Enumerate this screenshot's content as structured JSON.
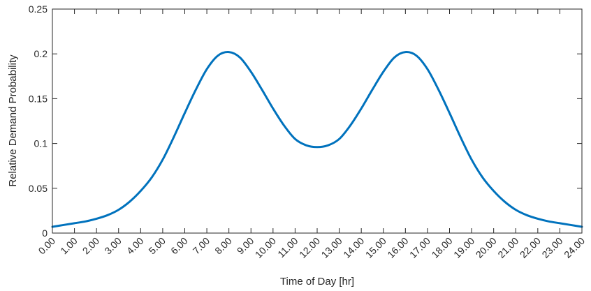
{
  "chart_data": {
    "type": "line",
    "title": "",
    "xlabel": "Time of Day [hr]",
    "ylabel": "Relative Demand Probability",
    "xlim": [
      0,
      24
    ],
    "ylim": [
      0,
      0.25
    ],
    "grid": false,
    "legend": "none",
    "x_tick_labels": [
      "0.00",
      "1.00",
      "2.00",
      "3.00",
      "4.00",
      "5.00",
      "6.00",
      "7.00",
      "8.00",
      "9.00",
      "10.00",
      "11.00",
      "12.00",
      "13.00",
      "14.00",
      "15.00",
      "16.00",
      "17.00",
      "18.00",
      "19.00",
      "20.00",
      "21.00",
      "22.00",
      "23.00",
      "24.00"
    ],
    "y_ticks": [
      0,
      0.05,
      0.1,
      0.15,
      0.2,
      0.25
    ],
    "y_tick_labels": [
      "0",
      "0.05",
      "0.1",
      "0.15",
      "0.2",
      "0.25"
    ],
    "colors": {
      "line": "#0072BD",
      "axis": "#262626"
    },
    "series": [
      {
        "x": [
          0,
          0.5,
          1,
          1.5,
          2,
          2.5,
          3,
          3.5,
          4,
          4.5,
          5,
          5.5,
          6,
          6.5,
          7,
          7.5,
          8,
          8.5,
          9,
          9.5,
          10,
          10.5,
          11,
          11.5,
          12,
          12.5,
          13,
          13.5,
          14,
          14.5,
          15,
          15.5,
          16,
          16.5,
          17,
          17.5,
          18,
          18.5,
          19,
          19.5,
          20,
          20.5,
          21,
          21.5,
          22,
          22.5,
          23,
          23.5,
          24
        ],
        "values": [
          0.007,
          0.009,
          0.011,
          0.013,
          0.016,
          0.02,
          0.026,
          0.035,
          0.047,
          0.062,
          0.082,
          0.107,
          0.134,
          0.16,
          0.183,
          0.198,
          0.202,
          0.196,
          0.18,
          0.16,
          0.139,
          0.12,
          0.105,
          0.098,
          0.096,
          0.098,
          0.105,
          0.12,
          0.139,
          0.16,
          0.18,
          0.196,
          0.202,
          0.198,
          0.183,
          0.16,
          0.134,
          0.107,
          0.082,
          0.062,
          0.047,
          0.035,
          0.026,
          0.02,
          0.016,
          0.013,
          0.011,
          0.009,
          0.007
        ]
      }
    ]
  }
}
